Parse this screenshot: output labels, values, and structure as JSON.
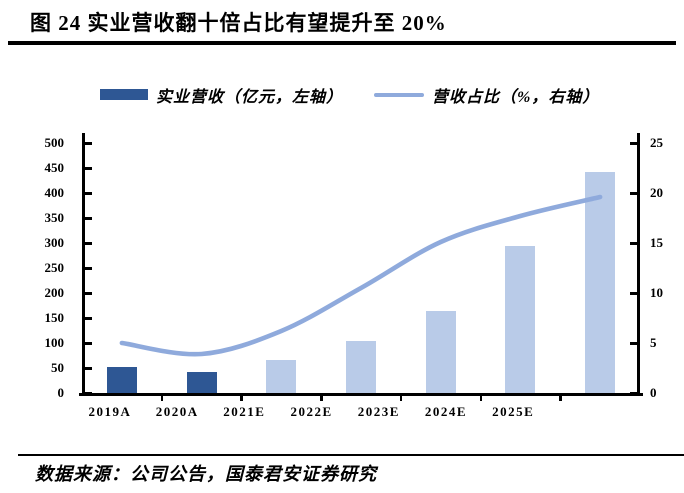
{
  "header": {
    "title": "图 24 实业营收翻十倍占比有望提升至 20%"
  },
  "legend": {
    "bar_label": "实业营收（亿元，左轴）",
    "line_label": "营收占比（%，右轴）"
  },
  "chart_data": {
    "type": "combo-bar-line",
    "title": "图 24 实业营收翻十倍占比有望提升至 20%",
    "categories": [
      "2019A",
      "2020A",
      "2021E",
      "2022E",
      "2023E",
      "2024E",
      "2025E"
    ],
    "series": [
      {
        "name": "实业营收（亿元，左轴）",
        "type": "bar",
        "axis": "left",
        "values": [
          53,
          43,
          66,
          104,
          164,
          295,
          443
        ],
        "point_color_roles": [
          "bar_dark",
          "bar_dark",
          "bar_light",
          "bar_light",
          "bar_light",
          "bar_light",
          "bar_light"
        ]
      },
      {
        "name": "营收占比（%，右轴）",
        "type": "line",
        "axis": "right",
        "smooth": true,
        "values": [
          5.0,
          3.9,
          6.2,
          10.5,
          15.1,
          17.7,
          19.6
        ],
        "color_role": "line"
      }
    ],
    "left_axis": {
      "min": 0,
      "max": 500,
      "step": 50,
      "ticks": [
        0,
        50,
        100,
        150,
        200,
        250,
        300,
        350,
        400,
        450,
        500
      ]
    },
    "right_axis": {
      "min": 0,
      "max": 25,
      "step": 5,
      "ticks": [
        0,
        5,
        10,
        15,
        20,
        25
      ]
    },
    "grid": false,
    "legend_position": "top"
  },
  "colors": {
    "bar_dark": "#2E5794",
    "bar_light": "#B9CBE8",
    "line": "#8FAADC",
    "axis": "#000000"
  },
  "footer": {
    "source": "数据来源：公司公告，国泰君安证券研究"
  }
}
